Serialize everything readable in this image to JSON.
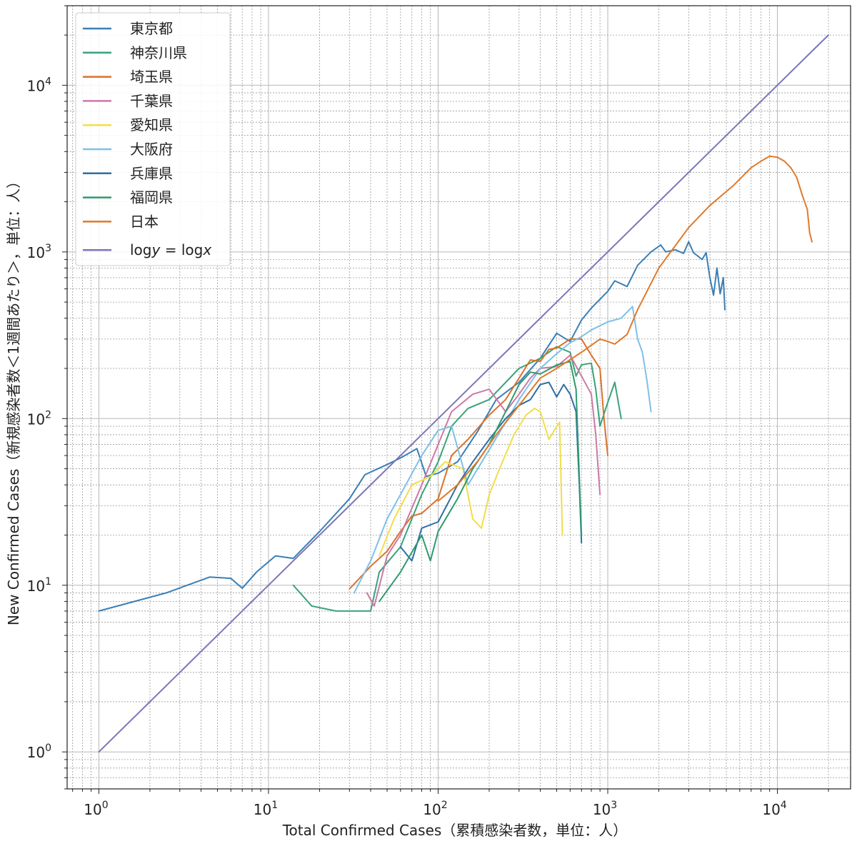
{
  "chart_data": {
    "type": "line",
    "xscale": "log",
    "yscale": "log",
    "xlabel": "Total Confirmed Cases（累積感染者数，単位：人）",
    "ylabel": "New Confirmed Cases（新規感染者数＜1週間あたり＞，単位：人）",
    "xlim": [
      0.65,
      27000
    ],
    "ylim": [
      0.6,
      30000
    ],
    "grid": true,
    "legend_position": "upper-left",
    "x_ticks": [
      {
        "value": 1,
        "base": "10",
        "exp": "0"
      },
      {
        "value": 10,
        "base": "10",
        "exp": "1"
      },
      {
        "value": 100,
        "base": "10",
        "exp": "2"
      },
      {
        "value": 1000,
        "base": "10",
        "exp": "3"
      },
      {
        "value": 10000,
        "base": "10",
        "exp": "4"
      }
    ],
    "y_ticks": [
      {
        "value": 1,
        "base": "10",
        "exp": "0"
      },
      {
        "value": 10,
        "base": "10",
        "exp": "1"
      },
      {
        "value": 100,
        "base": "10",
        "exp": "2"
      },
      {
        "value": 1000,
        "base": "10",
        "exp": "3"
      },
      {
        "value": 10000,
        "base": "10",
        "exp": "4"
      }
    ],
    "series": [
      {
        "name": "東京都",
        "color": "#3a7fb5",
        "points": [
          [
            1,
            7
          ],
          [
            2.5,
            9
          ],
          [
            4.5,
            11.2
          ],
          [
            6,
            11
          ],
          [
            7,
            9.6
          ],
          [
            8.5,
            12
          ],
          [
            11,
            15
          ],
          [
            14,
            14.5
          ],
          [
            20,
            21
          ],
          [
            30,
            33
          ],
          [
            37,
            46
          ],
          [
            50,
            53
          ],
          [
            60,
            58
          ],
          [
            75,
            66
          ],
          [
            85,
            45
          ],
          [
            100,
            47
          ],
          [
            130,
            55
          ],
          [
            170,
            83
          ],
          [
            220,
            130
          ],
          [
            300,
            165
          ],
          [
            400,
            230
          ],
          [
            500,
            325
          ],
          [
            600,
            290
          ],
          [
            700,
            390
          ],
          [
            800,
            460
          ],
          [
            1000,
            580
          ],
          [
            1100,
            670
          ],
          [
            1300,
            620
          ],
          [
            1500,
            830
          ],
          [
            1800,
            1000
          ],
          [
            2050,
            1100
          ],
          [
            2200,
            1000
          ],
          [
            2500,
            1030
          ],
          [
            2800,
            980
          ],
          [
            3000,
            1150
          ],
          [
            3200,
            990
          ],
          [
            3600,
            900
          ],
          [
            3800,
            990
          ],
          [
            4000,
            700
          ],
          [
            4200,
            550
          ],
          [
            4400,
            800
          ],
          [
            4600,
            560
          ],
          [
            4800,
            700
          ],
          [
            4900,
            450
          ]
        ]
      },
      {
        "name": "神奈川県",
        "color": "#3aa37a",
        "points": [
          [
            14,
            10
          ],
          [
            18,
            7.5
          ],
          [
            25,
            7
          ],
          [
            32,
            7
          ],
          [
            40,
            7
          ],
          [
            45,
            12
          ],
          [
            60,
            17
          ],
          [
            80,
            35
          ],
          [
            100,
            55
          ],
          [
            120,
            90
          ],
          [
            150,
            115
          ],
          [
            200,
            130
          ],
          [
            300,
            200
          ],
          [
            400,
            230
          ],
          [
            500,
            270
          ],
          [
            600,
            250
          ],
          [
            650,
            180
          ],
          [
            700,
            210
          ],
          [
            800,
            215
          ],
          [
            850,
            150
          ],
          [
            900,
            90
          ],
          [
            1000,
            125
          ],
          [
            1100,
            165
          ],
          [
            1200,
            100
          ]
        ]
      },
      {
        "name": "埼玉県",
        "color": "#d9722b",
        "points": [
          [
            30,
            9.5
          ],
          [
            40,
            13
          ],
          [
            50,
            16
          ],
          [
            60,
            21
          ],
          [
            70,
            26
          ],
          [
            80,
            27
          ],
          [
            100,
            33
          ],
          [
            120,
            60
          ],
          [
            150,
            75
          ],
          [
            200,
            105
          ],
          [
            250,
            130
          ],
          [
            300,
            175
          ],
          [
            350,
            225
          ],
          [
            400,
            220
          ],
          [
            450,
            260
          ],
          [
            500,
            265
          ],
          [
            600,
            300
          ],
          [
            700,
            300
          ],
          [
            800,
            240
          ],
          [
            900,
            200
          ],
          [
            950,
            100
          ],
          [
            1000,
            60
          ]
        ]
      },
      {
        "name": "千葉県",
        "color": "#cc79a7",
        "points": [
          [
            38,
            9
          ],
          [
            42,
            7.5
          ],
          [
            50,
            15
          ],
          [
            60,
            20
          ],
          [
            80,
            40
          ],
          [
            100,
            70
          ],
          [
            120,
            110
          ],
          [
            160,
            140
          ],
          [
            200,
            150
          ],
          [
            250,
            110
          ],
          [
            300,
            140
          ],
          [
            350,
            175
          ],
          [
            400,
            200
          ],
          [
            500,
            205
          ],
          [
            600,
            240
          ],
          [
            700,
            180
          ],
          [
            800,
            140
          ],
          [
            850,
            80
          ],
          [
            900,
            35
          ]
        ]
      },
      {
        "name": "愛知県",
        "color": "#f2dd4a",
        "points": [
          [
            45,
            15
          ],
          [
            55,
            25
          ],
          [
            70,
            40
          ],
          [
            90,
            45
          ],
          [
            110,
            55
          ],
          [
            140,
            50
          ],
          [
            160,
            25
          ],
          [
            180,
            22
          ],
          [
            200,
            35
          ],
          [
            230,
            50
          ],
          [
            280,
            80
          ],
          [
            330,
            105
          ],
          [
            370,
            115
          ],
          [
            400,
            110
          ],
          [
            450,
            75
          ],
          [
            500,
            90
          ],
          [
            520,
            95
          ],
          [
            540,
            20
          ]
        ]
      },
      {
        "name": "大阪府",
        "color": "#7ec0e8",
        "points": [
          [
            32,
            9
          ],
          [
            40,
            14
          ],
          [
            50,
            25
          ],
          [
            60,
            35
          ],
          [
            80,
            60
          ],
          [
            100,
            85
          ],
          [
            120,
            90
          ],
          [
            150,
            40
          ],
          [
            200,
            65
          ],
          [
            300,
            130
          ],
          [
            400,
            200
          ],
          [
            500,
            245
          ],
          [
            600,
            285
          ],
          [
            700,
            310
          ],
          [
            800,
            340
          ],
          [
            1000,
            380
          ],
          [
            1200,
            400
          ],
          [
            1400,
            470
          ],
          [
            1500,
            300
          ],
          [
            1600,
            250
          ],
          [
            1700,
            170
          ],
          [
            1800,
            110
          ]
        ]
      },
      {
        "name": "兵庫県",
        "color": "#2f6fa6",
        "points": [
          [
            60,
            17
          ],
          [
            70,
            14
          ],
          [
            80,
            22
          ],
          [
            100,
            24
          ],
          [
            130,
            40
          ],
          [
            160,
            55
          ],
          [
            200,
            75
          ],
          [
            250,
            100
          ],
          [
            300,
            120
          ],
          [
            350,
            130
          ],
          [
            400,
            160
          ],
          [
            450,
            165
          ],
          [
            500,
            135
          ],
          [
            550,
            160
          ],
          [
            600,
            140
          ],
          [
            650,
            110
          ],
          [
            680,
            40
          ],
          [
            700,
            18
          ]
        ]
      },
      {
        "name": "福岡県",
        "color": "#2f9a6e",
        "points": [
          [
            45,
            8
          ],
          [
            60,
            12
          ],
          [
            80,
            20
          ],
          [
            90,
            14
          ],
          [
            100,
            21
          ],
          [
            130,
            33
          ],
          [
            160,
            50
          ],
          [
            200,
            70
          ],
          [
            250,
            110
          ],
          [
            300,
            160
          ],
          [
            350,
            190
          ],
          [
            400,
            185
          ],
          [
            500,
            210
          ],
          [
            600,
            220
          ],
          [
            650,
            150
          ],
          [
            700,
            20
          ]
        ]
      },
      {
        "name": "日本",
        "color": "#e07a2a",
        "points": [
          [
            100,
            32
          ],
          [
            130,
            40
          ],
          [
            170,
            55
          ],
          [
            220,
            80
          ],
          [
            300,
            120
          ],
          [
            400,
            175
          ],
          [
            500,
            200
          ],
          [
            700,
            250
          ],
          [
            900,
            300
          ],
          [
            1000,
            290
          ],
          [
            1100,
            280
          ],
          [
            1300,
            320
          ],
          [
            1500,
            450
          ],
          [
            2000,
            800
          ],
          [
            3000,
            1400
          ],
          [
            4000,
            1900
          ],
          [
            5500,
            2500
          ],
          [
            7000,
            3200
          ],
          [
            8000,
            3500
          ],
          [
            9000,
            3750
          ],
          [
            10000,
            3700
          ],
          [
            11000,
            3500
          ],
          [
            12000,
            3200
          ],
          [
            13000,
            2800
          ],
          [
            14000,
            2200
          ],
          [
            15000,
            1800
          ],
          [
            15500,
            1300
          ],
          [
            16000,
            1150
          ]
        ]
      },
      {
        "name": "logy = logx",
        "name_parts": [
          "log",
          "y",
          " = log",
          "x"
        ],
        "color": "#7a77b8",
        "points": [
          [
            1,
            1
          ],
          [
            20000,
            20000
          ]
        ]
      }
    ]
  }
}
